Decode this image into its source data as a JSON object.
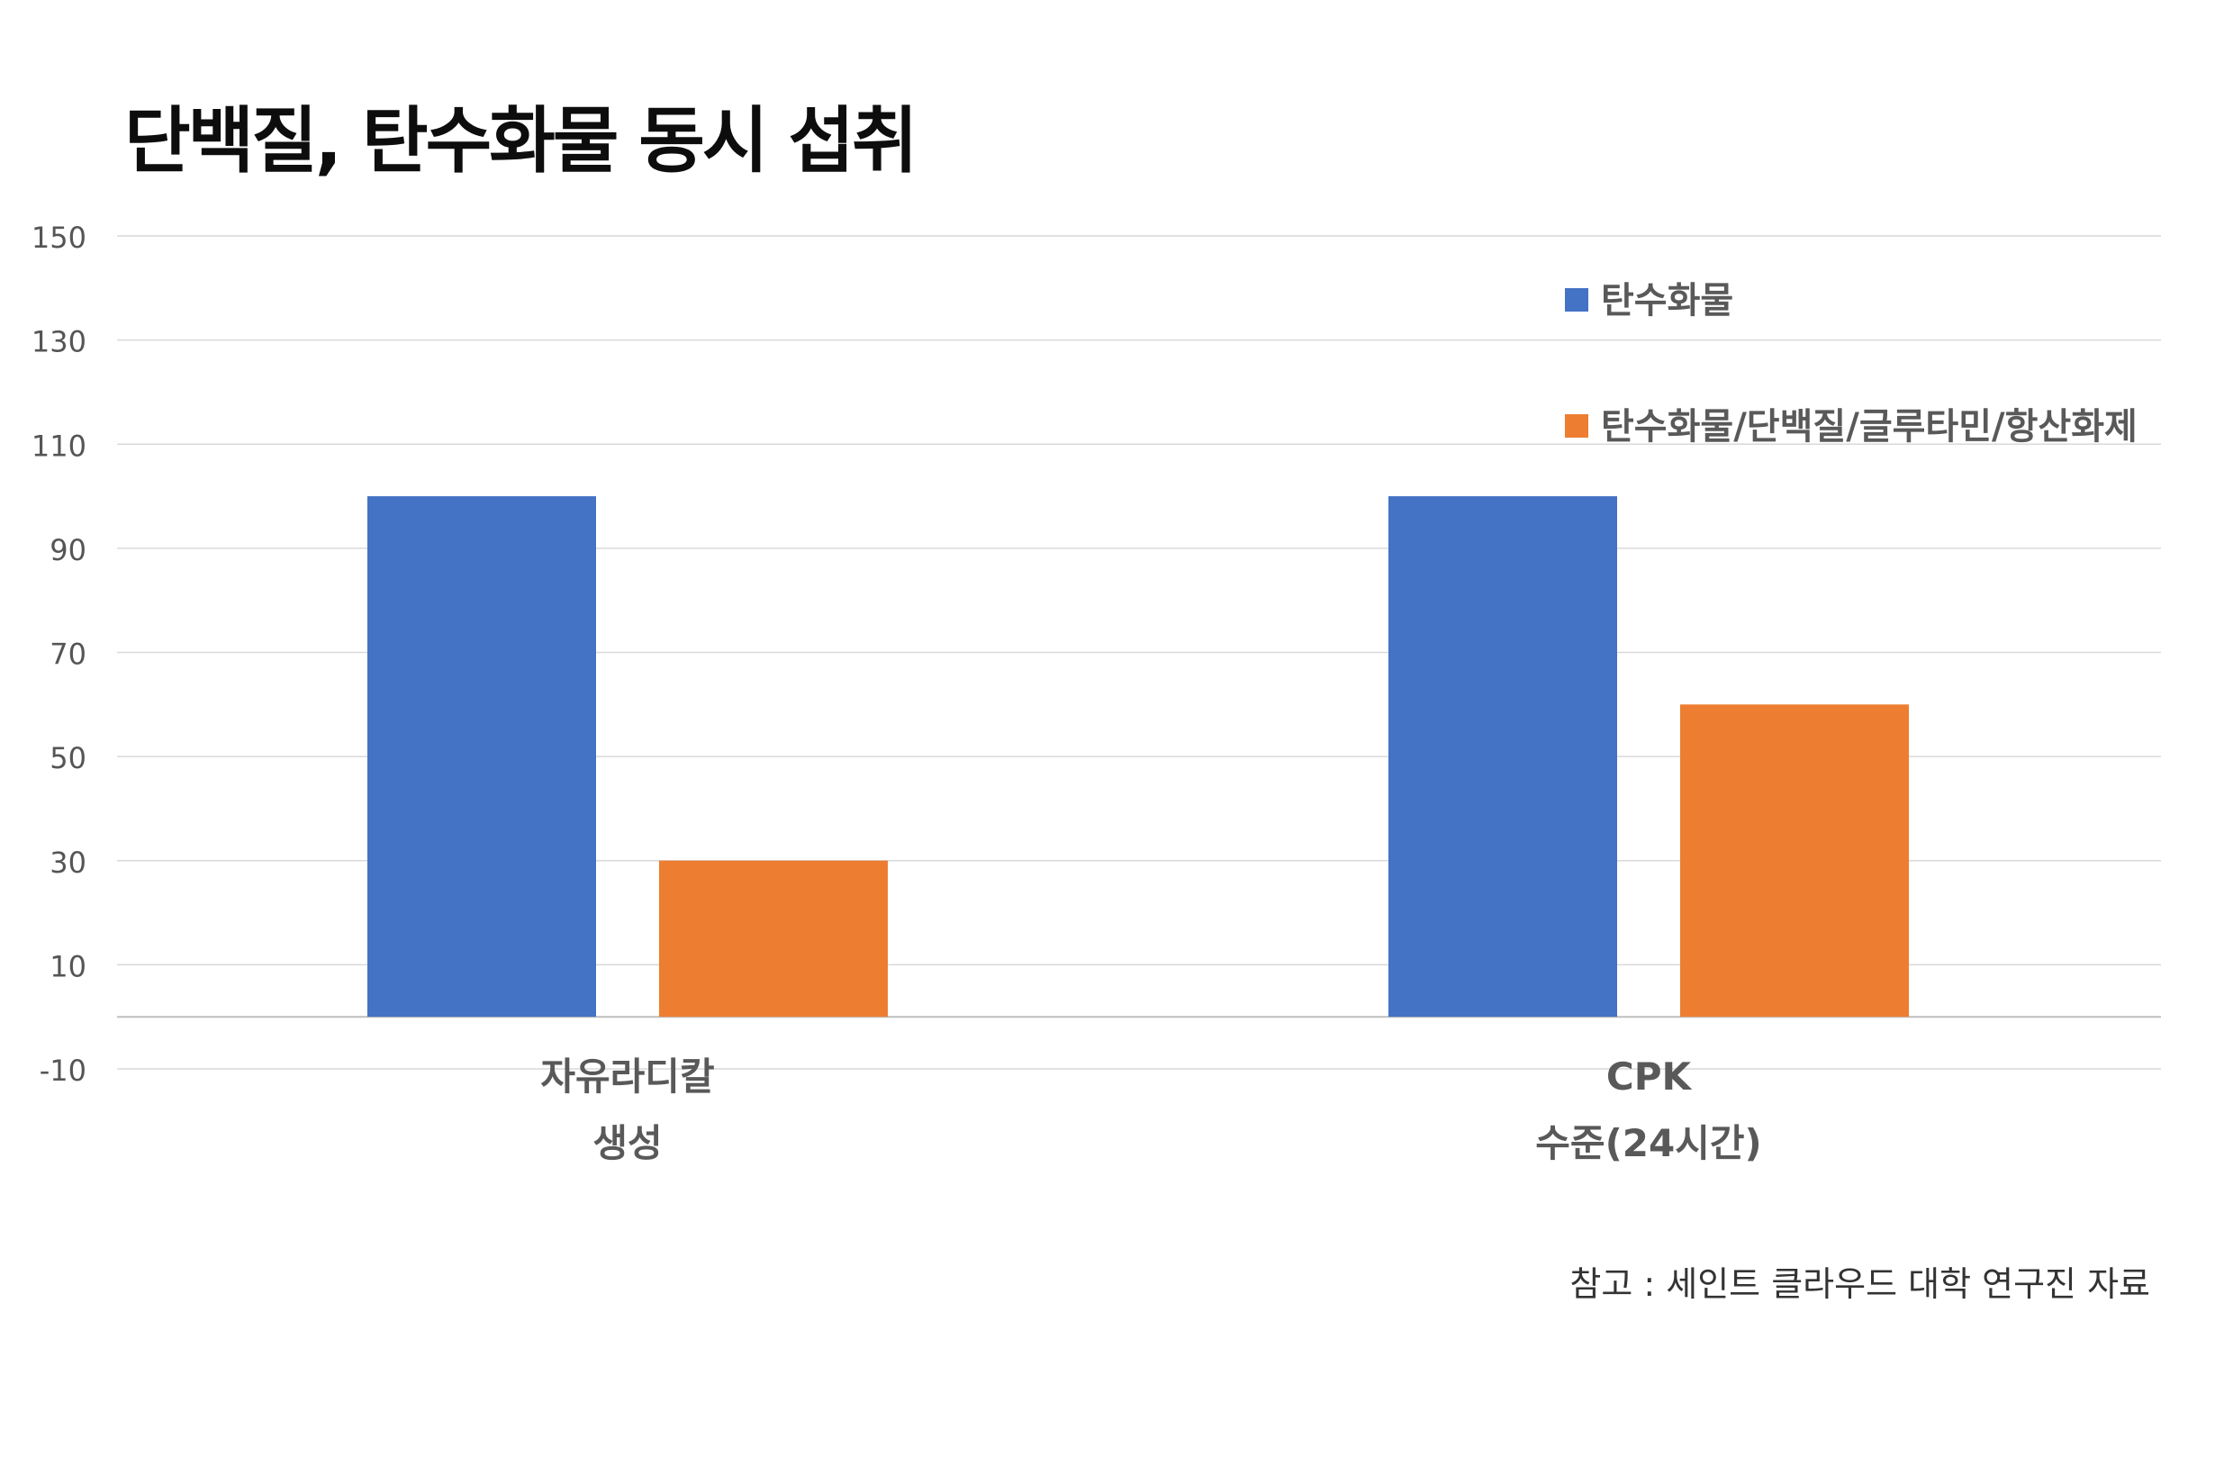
{
  "chart_data": {
    "type": "bar",
    "title": "단백질, 탄수화물 동시 섭취",
    "categories": [
      [
        "자유라디칼",
        "생성"
      ],
      [
        "CPK",
        "수준(24시간)"
      ]
    ],
    "series": [
      {
        "name": "탄수화물",
        "color": "#4472C4",
        "values": [
          100,
          100
        ]
      },
      {
        "name": "탄수화물/단백질/글루타민/항산화제",
        "color": "#ED7D31",
        "values": [
          30,
          60
        ]
      }
    ],
    "yticks": [
      "150",
      "130",
      "110",
      "90",
      "70",
      "50",
      "30",
      "10",
      "-10"
    ],
    "ylim": [
      -10,
      150
    ],
    "grid": true,
    "legend_position": "top-right"
  },
  "source_note": "참고 : 세인트 클라우드 대학 연구진 자료"
}
